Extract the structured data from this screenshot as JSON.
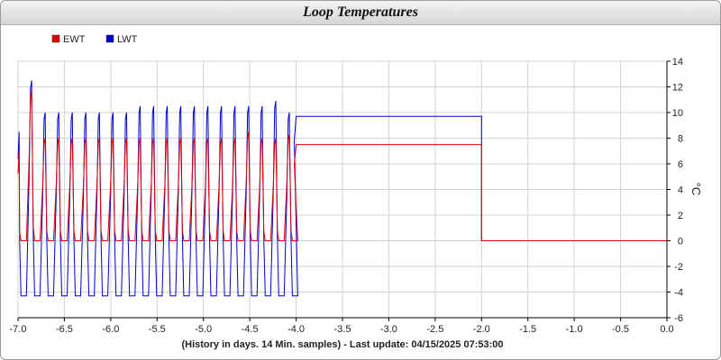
{
  "chart_data": {
    "type": "line",
    "title": "Loop Temperatures",
    "ylabel": "°C",
    "xlabel": "(History in days. 14 Min. samples) - Last update: 04/15/2025 07:53:00",
    "xlim": [
      -7.0,
      0.0
    ],
    "ylim": [
      -6,
      14
    ],
    "xticks": [
      "-7.0",
      "-6.5",
      "-6.0",
      "-5.5",
      "-5.0",
      "-4.5",
      "-4.0",
      "-3.5",
      "-3.0",
      "-2.5",
      "-2.0",
      "-1.5",
      "-1.0",
      "-0.5",
      "0.0"
    ],
    "yticks": [
      "-6",
      "-4",
      "-2",
      "0",
      "2",
      "4",
      "6",
      "8",
      "10",
      "12",
      "14"
    ],
    "grid": true,
    "legend_position": "top-left",
    "series": [
      {
        "name": "EWT",
        "color": "#e00000",
        "cycles": {
          "peaks": [
            7.0,
            11.7,
            8.0,
            8.0,
            8.0,
            8.0,
            8.0,
            8.0,
            8.0,
            8.0,
            8.0,
            8.0,
            8.0,
            8.0,
            8.0,
            8.0,
            8.0,
            8.5,
            8.0,
            8.0,
            8.3
          ],
          "troughs": [
            0.0,
            0.0,
            0.0,
            0.0,
            0.0,
            0.0,
            0.0,
            0.0,
            0.0,
            0.0,
            0.0,
            0.0,
            0.0,
            0.0,
            0.0,
            0.0,
            0.0,
            0.0,
            0.0,
            0.0
          ]
        },
        "steps": [
          {
            "x": -4.0,
            "y": 7.5
          },
          {
            "x": -2.0,
            "y": 7.5
          },
          {
            "x": -2.0,
            "y": 0.0
          },
          {
            "x": 0.0,
            "y": 0.0
          }
        ]
      },
      {
        "name": "LWT",
        "color": "#0000cc",
        "cycles": {
          "peaks": [
            8.5,
            12.5,
            10.0,
            10.0,
            10.0,
            10.0,
            10.0,
            10.0,
            10.0,
            10.5,
            10.5,
            10.5,
            10.5,
            10.5,
            10.5,
            10.5,
            10.5,
            10.5,
            10.5,
            10.9,
            10.0
          ],
          "troughs": [
            -4.3,
            -4.3,
            -4.3,
            -4.3,
            -4.3,
            -4.3,
            -4.3,
            -4.3,
            -4.3,
            -4.3,
            -4.3,
            -4.3,
            -4.3,
            -4.3,
            -4.3,
            -4.3,
            -4.3,
            -4.3,
            -4.3,
            -4.3
          ]
        },
        "steps": [
          {
            "x": -4.0,
            "y": 9.7
          },
          {
            "x": -2.0,
            "y": 9.7
          },
          {
            "x": -2.0,
            "y": 0.0
          },
          {
            "x": 0.0,
            "y": 0.0
          }
        ]
      }
    ]
  }
}
